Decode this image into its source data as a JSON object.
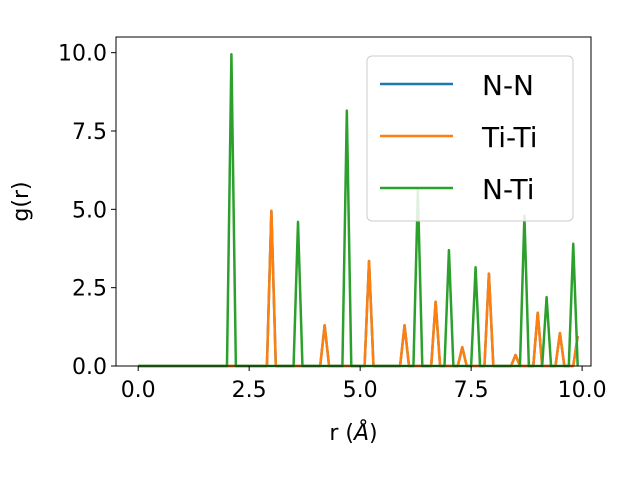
{
  "chart_data": {
    "type": "line",
    "xlabel_main": "r (",
    "xlabel_unit": "Å",
    "xlabel_close": ")",
    "ylabel": "g(r)",
    "xlim": [
      -0.5,
      10.2
    ],
    "ylim": [
      0,
      10.5
    ],
    "x_ticks": [
      0.0,
      2.5,
      5.0,
      7.5,
      10.0
    ],
    "x_tick_labels": [
      "0.0",
      "2.5",
      "5.0",
      "7.5",
      "10.0"
    ],
    "y_ticks": [
      0.0,
      2.5,
      5.0,
      7.5,
      10.0
    ],
    "y_tick_labels": [
      "0.0",
      "2.5",
      "5.0",
      "7.5",
      "10.0"
    ],
    "grid": false,
    "legend_position": "top-right",
    "series": [
      {
        "name": "N-N",
        "color": "#1f77b4",
        "x": [
          0.0,
          2.9,
          3.0,
          3.1,
          4.1,
          4.2,
          4.3,
          5.1,
          5.2,
          5.3,
          5.9,
          6.0,
          6.1,
          6.6,
          6.7,
          6.8,
          7.2,
          7.3,
          7.4,
          7.8,
          7.9,
          8.0,
          8.4,
          8.5,
          8.6,
          8.9,
          9.0,
          9.1,
          9.4,
          9.5,
          9.6,
          9.8,
          9.9
        ],
        "y": [
          0.0,
          0.0,
          4.95,
          0.0,
          0.0,
          1.3,
          0.0,
          0.0,
          3.35,
          0.0,
          0.0,
          1.3,
          0.0,
          0.0,
          2.05,
          0.0,
          0.0,
          0.6,
          0.0,
          0.0,
          2.95,
          0.0,
          0.0,
          0.35,
          0.0,
          0.0,
          1.7,
          0.0,
          0.0,
          1.05,
          0.0,
          0.0,
          0.95
        ]
      },
      {
        "name": "Ti-Ti",
        "color": "#ff7f0e",
        "x": [
          0.0,
          2.9,
          3.0,
          3.1,
          4.1,
          4.2,
          4.3,
          5.1,
          5.2,
          5.3,
          5.9,
          6.0,
          6.1,
          6.6,
          6.7,
          6.8,
          7.2,
          7.3,
          7.4,
          7.8,
          7.9,
          8.0,
          8.4,
          8.5,
          8.6,
          8.9,
          9.0,
          9.1,
          9.4,
          9.5,
          9.6,
          9.8,
          9.9
        ],
        "y": [
          0.0,
          0.0,
          4.95,
          0.0,
          0.0,
          1.3,
          0.0,
          0.0,
          3.35,
          0.0,
          0.0,
          1.3,
          0.0,
          0.0,
          2.05,
          0.0,
          0.0,
          0.6,
          0.0,
          0.0,
          2.95,
          0.0,
          0.0,
          0.35,
          0.0,
          0.0,
          1.7,
          0.0,
          0.0,
          1.05,
          0.0,
          0.0,
          0.95
        ]
      },
      {
        "name": "N-Ti",
        "color": "#2ca02c",
        "x": [
          0.0,
          2.0,
          2.1,
          2.2,
          3.5,
          3.6,
          3.7,
          4.6,
          4.7,
          4.8,
          6.2,
          6.3,
          6.4,
          6.9,
          7.0,
          7.1,
          7.5,
          7.6,
          7.7,
          8.6,
          8.7,
          8.8,
          9.1,
          9.2,
          9.3,
          9.7,
          9.8,
          9.9
        ],
        "y": [
          0.0,
          0.0,
          9.95,
          0.0,
          0.0,
          4.6,
          0.0,
          0.0,
          8.15,
          0.0,
          0.0,
          5.6,
          0.0,
          0.0,
          3.7,
          0.0,
          0.0,
          3.15,
          0.0,
          0.0,
          4.8,
          0.0,
          0.0,
          2.2,
          0.0,
          0.0,
          3.9,
          0.0
        ]
      }
    ]
  }
}
